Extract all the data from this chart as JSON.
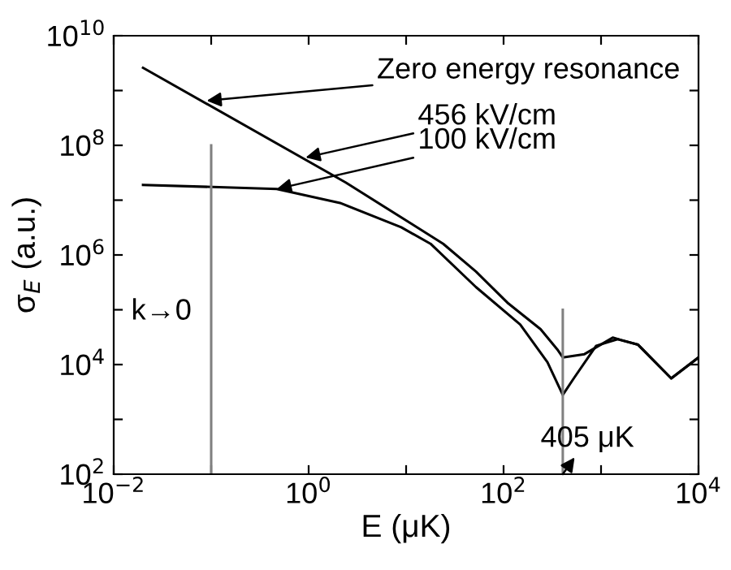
{
  "chart_data": {
    "type": "line",
    "xlabel": "E (μK)",
    "ylabel": "σ$_{E}$ (a.u.)",
    "log": "xy",
    "grid": false,
    "marker": "none",
    "line_style": "solid",
    "xlim": [
      0.01,
      10000
    ],
    "ylim": [
      100,
      10000000000
    ],
    "xticks": [
      {
        "value": 0.01,
        "label": "10$^{−2}$"
      },
      {
        "value": 0.1,
        "label": null
      },
      {
        "value": 1,
        "label": "10$^{0}$"
      },
      {
        "value": 10,
        "label": null
      },
      {
        "value": 100,
        "label": "10$^{2}$"
      },
      {
        "value": 1000,
        "label": null
      },
      {
        "value": 10000,
        "label": "10$^{4}$"
      }
    ],
    "yticks": [
      {
        "value": 100,
        "label": "10$^{2}$"
      },
      {
        "value": 1000,
        "label": null
      },
      {
        "value": 10000,
        "label": "10$^{4}$"
      },
      {
        "value": 100000,
        "label": null
      },
      {
        "value": 1000000,
        "label": "10$^{6}$"
      },
      {
        "value": 10000000,
        "label": null
      },
      {
        "value": 100000000,
        "label": "10$^{8}$"
      },
      {
        "value": 1000000000,
        "label": null
      },
      {
        "value": 10000000000,
        "label": "10$^{10}$"
      }
    ],
    "series": [
      {
        "color": "#000000",
        "x": [
          0.02,
          2.4,
          24,
          52,
          112,
          240,
          355,
          405,
          676,
          1318,
          2400,
          5250,
          10000
        ],
        "values": [
          2600000000,
          21000000,
          1600000,
          500000,
          130000,
          44000,
          19000,
          13500,
          15500,
          31000,
          23000,
          5600,
          13500
        ]
      },
      {
        "color": "#000000",
        "x": [
          0.02,
          0.47,
          2.1,
          8.9,
          17.8,
          52,
          148,
          282,
          405,
          525,
          891,
          1479,
          2400,
          5250,
          10000
        ],
        "values": [
          19000000,
          16000000,
          8900000,
          3200000,
          1600000,
          260000,
          54000,
          11000,
          2800,
          5600,
          22000,
          29000,
          23000,
          5600,
          13500
        ]
      }
    ],
    "ref_lines": [
      {
        "axis": "x",
        "value": 0.1,
        "color": "#808080"
      },
      {
        "axis": "x",
        "value": 405,
        "color": "#808080"
      }
    ],
    "annotations": [
      {
        "text": "Zero energy resonance",
        "x": 0.09,
        "y": 650000000
      },
      {
        "text": "456 kV/cm",
        "x": 0.93,
        "y": 60000000
      },
      {
        "text": "100 kV/cm",
        "x": 0.47,
        "y": 16000000
      },
      "k→0",
      {
        "text": "405 μK",
        "x": 405,
        "y": 100
      }
    ]
  }
}
